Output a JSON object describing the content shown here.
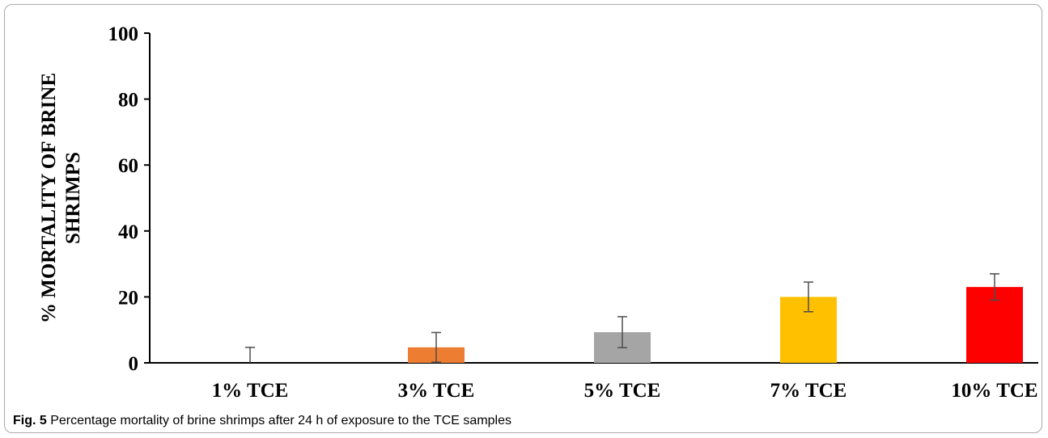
{
  "caption": {
    "label": "Fig. 5",
    "text": "Percentage mortality of brine shrimps after 24 h of exposure to the TCE samples"
  },
  "chart_data": {
    "type": "bar",
    "title": "",
    "ylabel": "% MORTALITY OF BRINE SHRIMPS",
    "ylabel_lines": [
      "% MORTALITY OF BRINE",
      "SHRIMPS"
    ],
    "xlabel": "",
    "categories": [
      "1% TCE",
      "3% TCE",
      "5% TCE",
      "7% TCE",
      "10% TCE"
    ],
    "values": [
      0,
      4.7,
      9.3,
      20,
      23
    ],
    "error_bars": [
      4.7,
      4.5,
      4.7,
      4.5,
      4
    ],
    "colors": [
      "#4472c4",
      "#ed7d31",
      "#a5a5a5",
      "#ffc000",
      "#ff0000"
    ],
    "error_bar_color": "#4d4d4d",
    "ylim": [
      0,
      100
    ],
    "yticks": [
      "0",
      "20",
      "40",
      "60",
      "80",
      "100"
    ],
    "grid": false,
    "legend": "none"
  }
}
